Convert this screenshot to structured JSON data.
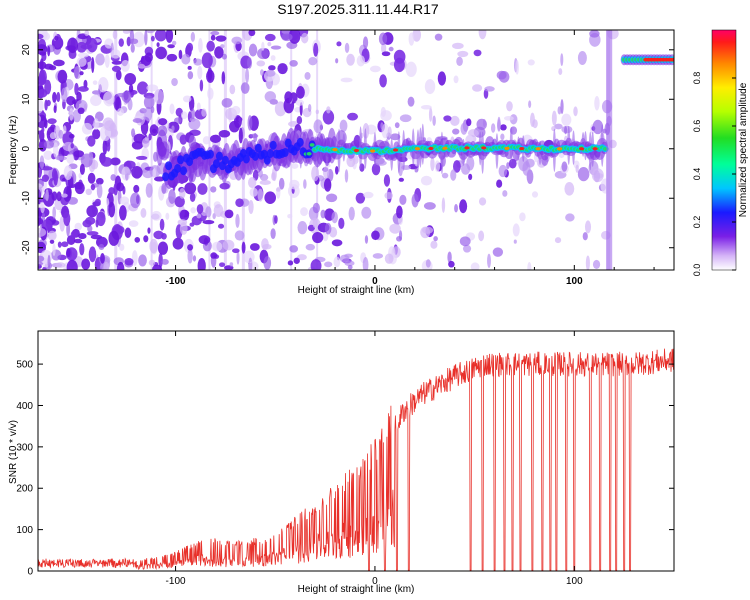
{
  "figure": {
    "title": "S197.2025.311.11.44.R17"
  },
  "chart_data": [
    {
      "type": "heatmap",
      "title": "S197.2025.311.11.44.R17",
      "xlabel": "Height of straight line (km)",
      "ylabel": "Frequency (Hz)",
      "xlim": [
        -169,
        150
      ],
      "ylim": [
        -24.5,
        24
      ],
      "x_ticks": [
        -100,
        0,
        100
      ],
      "x_tick_labels": [
        "-100",
        "0",
        "100"
      ],
      "y_ticks": [
        -20,
        -10,
        0,
        10,
        20
      ],
      "y_tick_labels": [
        "-20",
        "-10",
        "0",
        "10",
        "20"
      ],
      "colorbar": {
        "label": "Normalized spectral amplitude",
        "range": [
          0,
          1
        ],
        "ticks": [
          0.0,
          0.2,
          0.4,
          0.6,
          0.8
        ],
        "tick_labels": [
          "0.0",
          "0.2",
          "0.4",
          "0.6",
          "0.8"
        ]
      },
      "ridge": [
        {
          "x": -105,
          "y": -5
        },
        {
          "x": -90,
          "y": -2
        },
        {
          "x": -75,
          "y": -3
        },
        {
          "x": -60,
          "y": -1.5
        },
        {
          "x": -45,
          "y": 0
        },
        {
          "x": -30,
          "y": 0
        },
        {
          "x": 0,
          "y": -0.5
        },
        {
          "x": 20,
          "y": 0
        },
        {
          "x": 50,
          "y": 0.2
        },
        {
          "x": 80,
          "y": 0
        },
        {
          "x": 115,
          "y": 0
        }
      ],
      "jump": {
        "x_from": 117,
        "x_to": 125,
        "y_after": 18
      },
      "grid": false
    },
    {
      "type": "line",
      "title": "",
      "xlabel": "Height of straight line (km)",
      "ylabel": "SNR (10 * v/v)",
      "xlim": [
        -169,
        150
      ],
      "ylim": [
        0,
        580
      ],
      "x_ticks": [
        -100,
        0,
        100
      ],
      "x_tick_labels": [
        "-100",
        "0",
        "100"
      ],
      "y_ticks": [
        0,
        100,
        200,
        300,
        400,
        500
      ],
      "y_tick_labels": [
        "0",
        "100",
        "200",
        "300",
        "400",
        "500"
      ],
      "line_color": "#e8302a",
      "trend": [
        {
          "x": -169,
          "y": 20
        },
        {
          "x": -120,
          "y": 22
        },
        {
          "x": -100,
          "y": 40
        },
        {
          "x": -85,
          "y": 70
        },
        {
          "x": -70,
          "y": 60
        },
        {
          "x": -55,
          "y": 70
        },
        {
          "x": -40,
          "y": 110
        },
        {
          "x": -25,
          "y": 160
        },
        {
          "x": -10,
          "y": 220
        },
        {
          "x": 0,
          "y": 270
        },
        {
          "x": 5,
          "y": 310
        },
        {
          "x": 15,
          "y": 390
        },
        {
          "x": 25,
          "y": 430
        },
        {
          "x": 40,
          "y": 470
        },
        {
          "x": 55,
          "y": 500
        },
        {
          "x": 75,
          "y": 500
        },
        {
          "x": 100,
          "y": 500
        },
        {
          "x": 130,
          "y": 500
        },
        {
          "x": 150,
          "y": 510
        }
      ],
      "dropouts_x": [
        -3,
        5,
        11,
        17,
        48,
        54,
        60,
        65,
        69,
        73,
        79,
        84,
        88,
        91,
        96,
        100,
        108,
        113,
        118,
        121,
        125,
        128
      ],
      "grid": false
    }
  ]
}
